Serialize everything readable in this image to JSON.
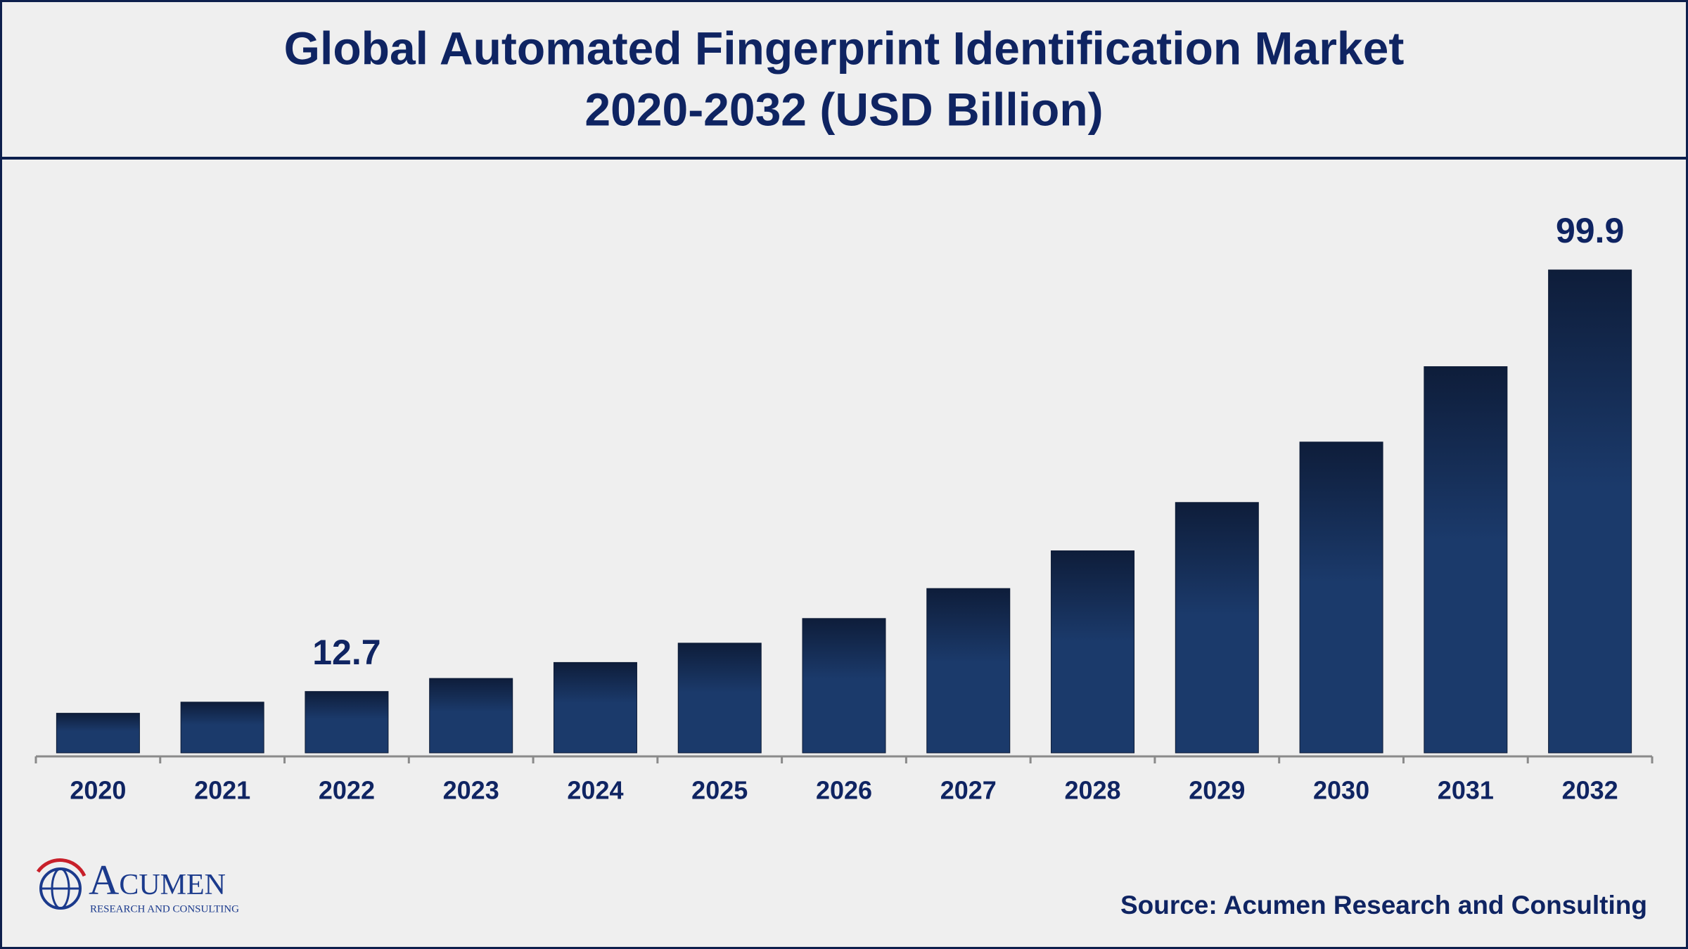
{
  "chart_data": {
    "type": "bar",
    "title": "Global Automated Fingerprint Identification Market",
    "subtitle": "2020-2032 (USD Billion)",
    "categories": [
      "2020",
      "2021",
      "2022",
      "2023",
      "2024",
      "2025",
      "2026",
      "2027",
      "2028",
      "2029",
      "2030",
      "2031",
      "2032"
    ],
    "values": [
      8.2,
      10.5,
      12.7,
      15.4,
      18.7,
      22.7,
      27.8,
      34.0,
      41.8,
      51.8,
      64.3,
      79.9,
      99.9
    ],
    "value_labels": [
      null,
      null,
      "12.7",
      null,
      null,
      null,
      null,
      null,
      null,
      null,
      null,
      null,
      "99.9"
    ],
    "color": "#1b3a6b",
    "source": "Source: Acumen Research and Consulting"
  },
  "logo": {
    "name": "Acumen",
    "tagline": "RESEARCH AND CONSULTING"
  }
}
